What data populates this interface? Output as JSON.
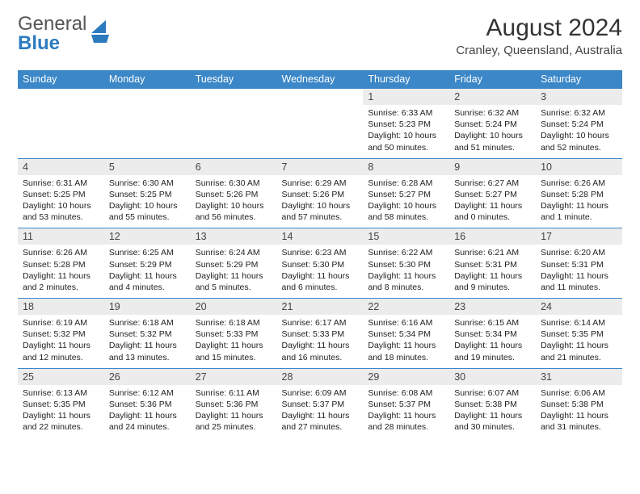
{
  "logo": {
    "line1": "General",
    "line2": "Blue"
  },
  "title": "August 2024",
  "location": "Cranley, Queensland, Australia",
  "colors": {
    "header_bg": "#3b87c8",
    "header_text": "#ffffff",
    "daynum_bg": "#ececec",
    "row_border": "#3b87c8",
    "logo_blue": "#2d7bbf",
    "logo_gray": "#555555"
  },
  "weekdays": [
    "Sunday",
    "Monday",
    "Tuesday",
    "Wednesday",
    "Thursday",
    "Friday",
    "Saturday"
  ],
  "weeks": [
    [
      {
        "blank": true
      },
      {
        "blank": true
      },
      {
        "blank": true
      },
      {
        "blank": true
      },
      {
        "n": "1",
        "sr": "Sunrise: 6:33 AM",
        "ss": "Sunset: 5:23 PM",
        "dl": "Daylight: 10 hours and 50 minutes."
      },
      {
        "n": "2",
        "sr": "Sunrise: 6:32 AM",
        "ss": "Sunset: 5:24 PM",
        "dl": "Daylight: 10 hours and 51 minutes."
      },
      {
        "n": "3",
        "sr": "Sunrise: 6:32 AM",
        "ss": "Sunset: 5:24 PM",
        "dl": "Daylight: 10 hours and 52 minutes."
      }
    ],
    [
      {
        "n": "4",
        "sr": "Sunrise: 6:31 AM",
        "ss": "Sunset: 5:25 PM",
        "dl": "Daylight: 10 hours and 53 minutes."
      },
      {
        "n": "5",
        "sr": "Sunrise: 6:30 AM",
        "ss": "Sunset: 5:25 PM",
        "dl": "Daylight: 10 hours and 55 minutes."
      },
      {
        "n": "6",
        "sr": "Sunrise: 6:30 AM",
        "ss": "Sunset: 5:26 PM",
        "dl": "Daylight: 10 hours and 56 minutes."
      },
      {
        "n": "7",
        "sr": "Sunrise: 6:29 AM",
        "ss": "Sunset: 5:26 PM",
        "dl": "Daylight: 10 hours and 57 minutes."
      },
      {
        "n": "8",
        "sr": "Sunrise: 6:28 AM",
        "ss": "Sunset: 5:27 PM",
        "dl": "Daylight: 10 hours and 58 minutes."
      },
      {
        "n": "9",
        "sr": "Sunrise: 6:27 AM",
        "ss": "Sunset: 5:27 PM",
        "dl": "Daylight: 11 hours and 0 minutes."
      },
      {
        "n": "10",
        "sr": "Sunrise: 6:26 AM",
        "ss": "Sunset: 5:28 PM",
        "dl": "Daylight: 11 hours and 1 minute."
      }
    ],
    [
      {
        "n": "11",
        "sr": "Sunrise: 6:26 AM",
        "ss": "Sunset: 5:28 PM",
        "dl": "Daylight: 11 hours and 2 minutes."
      },
      {
        "n": "12",
        "sr": "Sunrise: 6:25 AM",
        "ss": "Sunset: 5:29 PM",
        "dl": "Daylight: 11 hours and 4 minutes."
      },
      {
        "n": "13",
        "sr": "Sunrise: 6:24 AM",
        "ss": "Sunset: 5:29 PM",
        "dl": "Daylight: 11 hours and 5 minutes."
      },
      {
        "n": "14",
        "sr": "Sunrise: 6:23 AM",
        "ss": "Sunset: 5:30 PM",
        "dl": "Daylight: 11 hours and 6 minutes."
      },
      {
        "n": "15",
        "sr": "Sunrise: 6:22 AM",
        "ss": "Sunset: 5:30 PM",
        "dl": "Daylight: 11 hours and 8 minutes."
      },
      {
        "n": "16",
        "sr": "Sunrise: 6:21 AM",
        "ss": "Sunset: 5:31 PM",
        "dl": "Daylight: 11 hours and 9 minutes."
      },
      {
        "n": "17",
        "sr": "Sunrise: 6:20 AM",
        "ss": "Sunset: 5:31 PM",
        "dl": "Daylight: 11 hours and 11 minutes."
      }
    ],
    [
      {
        "n": "18",
        "sr": "Sunrise: 6:19 AM",
        "ss": "Sunset: 5:32 PM",
        "dl": "Daylight: 11 hours and 12 minutes."
      },
      {
        "n": "19",
        "sr": "Sunrise: 6:18 AM",
        "ss": "Sunset: 5:32 PM",
        "dl": "Daylight: 11 hours and 13 minutes."
      },
      {
        "n": "20",
        "sr": "Sunrise: 6:18 AM",
        "ss": "Sunset: 5:33 PM",
        "dl": "Daylight: 11 hours and 15 minutes."
      },
      {
        "n": "21",
        "sr": "Sunrise: 6:17 AM",
        "ss": "Sunset: 5:33 PM",
        "dl": "Daylight: 11 hours and 16 minutes."
      },
      {
        "n": "22",
        "sr": "Sunrise: 6:16 AM",
        "ss": "Sunset: 5:34 PM",
        "dl": "Daylight: 11 hours and 18 minutes."
      },
      {
        "n": "23",
        "sr": "Sunrise: 6:15 AM",
        "ss": "Sunset: 5:34 PM",
        "dl": "Daylight: 11 hours and 19 minutes."
      },
      {
        "n": "24",
        "sr": "Sunrise: 6:14 AM",
        "ss": "Sunset: 5:35 PM",
        "dl": "Daylight: 11 hours and 21 minutes."
      }
    ],
    [
      {
        "n": "25",
        "sr": "Sunrise: 6:13 AM",
        "ss": "Sunset: 5:35 PM",
        "dl": "Daylight: 11 hours and 22 minutes."
      },
      {
        "n": "26",
        "sr": "Sunrise: 6:12 AM",
        "ss": "Sunset: 5:36 PM",
        "dl": "Daylight: 11 hours and 24 minutes."
      },
      {
        "n": "27",
        "sr": "Sunrise: 6:11 AM",
        "ss": "Sunset: 5:36 PM",
        "dl": "Daylight: 11 hours and 25 minutes."
      },
      {
        "n": "28",
        "sr": "Sunrise: 6:09 AM",
        "ss": "Sunset: 5:37 PM",
        "dl": "Daylight: 11 hours and 27 minutes."
      },
      {
        "n": "29",
        "sr": "Sunrise: 6:08 AM",
        "ss": "Sunset: 5:37 PM",
        "dl": "Daylight: 11 hours and 28 minutes."
      },
      {
        "n": "30",
        "sr": "Sunrise: 6:07 AM",
        "ss": "Sunset: 5:38 PM",
        "dl": "Daylight: 11 hours and 30 minutes."
      },
      {
        "n": "31",
        "sr": "Sunrise: 6:06 AM",
        "ss": "Sunset: 5:38 PM",
        "dl": "Daylight: 11 hours and 31 minutes."
      }
    ]
  ]
}
